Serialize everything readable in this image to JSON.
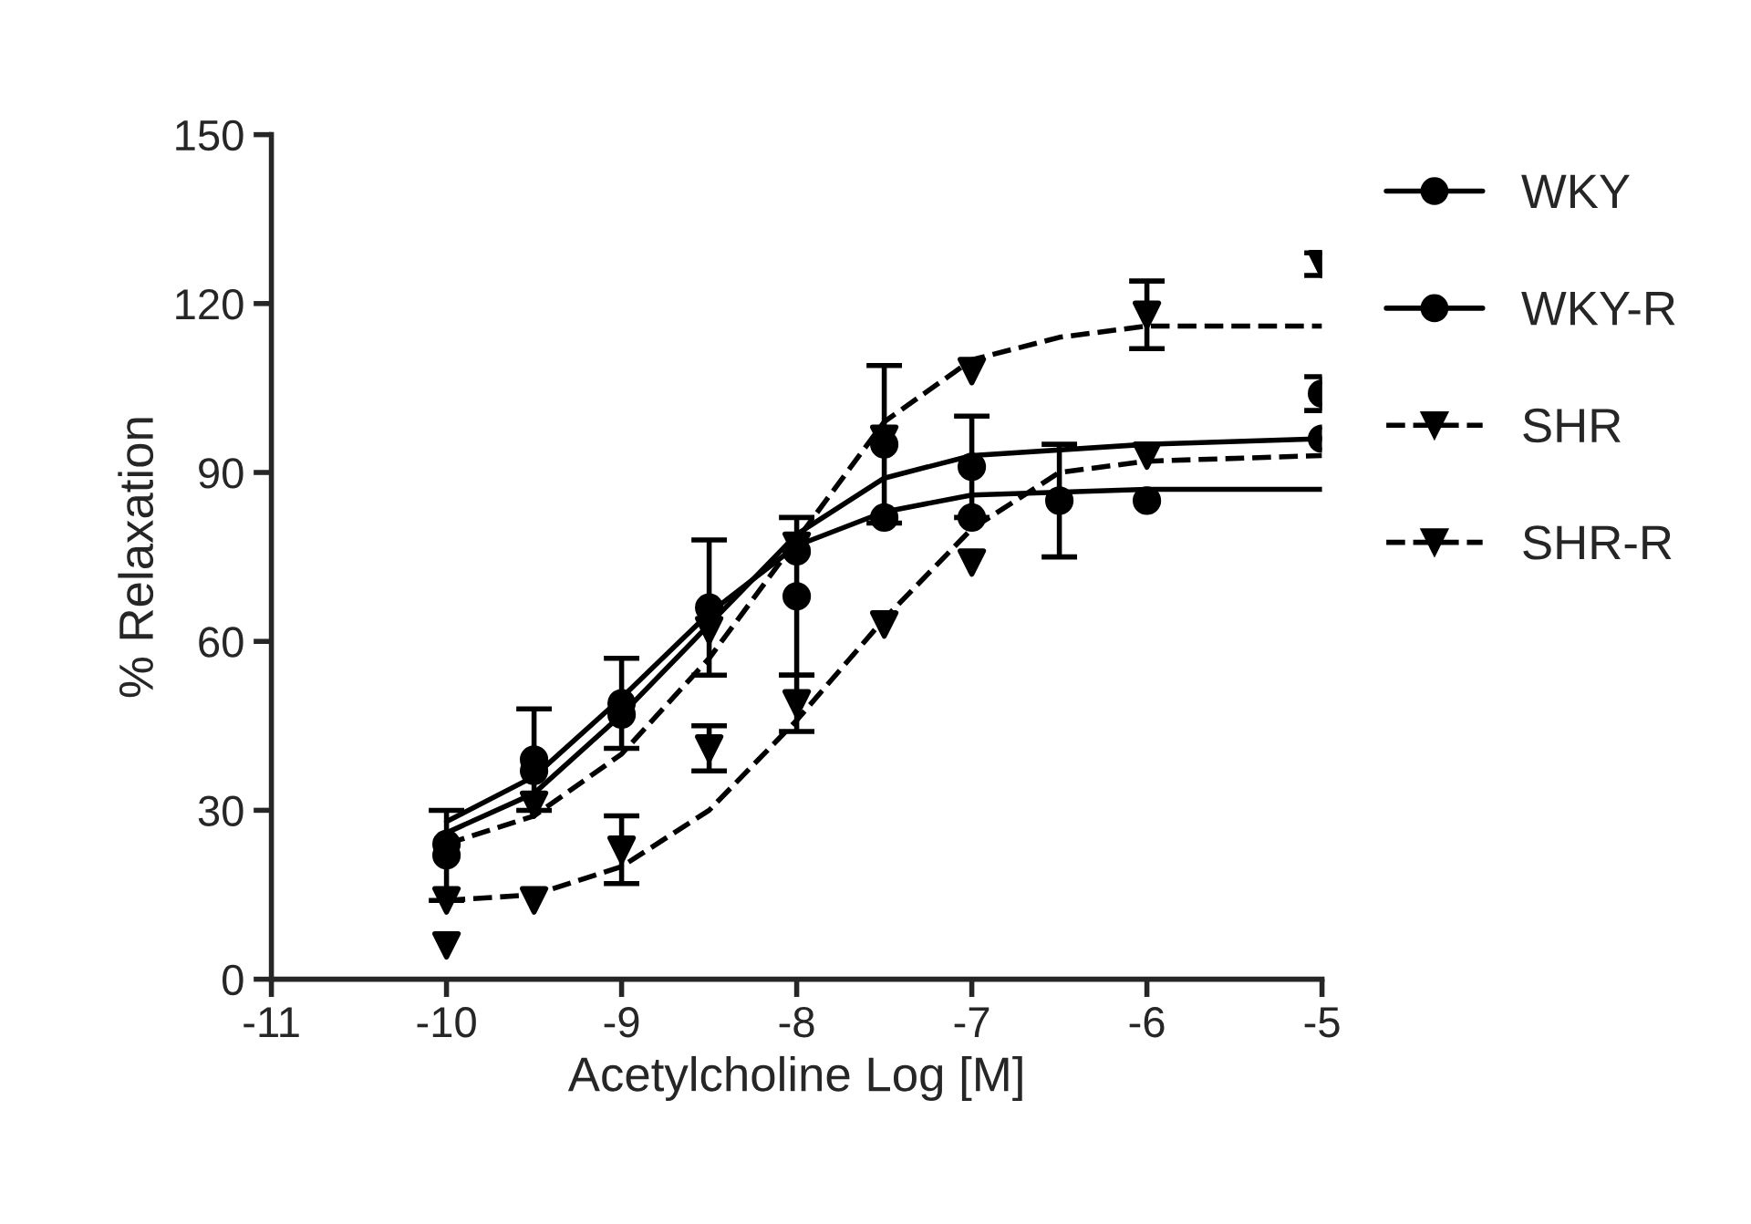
{
  "chart_data": {
    "type": "scatter",
    "xlabel": "Acetylcholine Log [M]",
    "ylabel": "% Relaxation",
    "xlim": [
      -11,
      -5
    ],
    "xticks": [
      -11,
      -10,
      -9,
      -8,
      -7,
      -6,
      -5
    ],
    "ylim": [
      0,
      150
    ],
    "yticks": [
      0,
      30,
      60,
      90,
      120,
      150
    ],
    "grid": false,
    "legend": "right",
    "series": [
      {
        "name": "WKY",
        "color": "#000000",
        "marker": "circle",
        "line_style": "solid",
        "x": [
          -10,
          -9.5,
          -9,
          -8.5,
          -8,
          -7.5,
          -7,
          -6,
          -5
        ],
        "values": [
          22,
          39,
          49,
          66,
          68,
          82,
          82,
          85,
          96
        ],
        "errors": [
          8,
          9,
          8,
          12,
          14,
          null,
          null,
          null,
          null
        ]
      },
      {
        "name": "WKY-R",
        "color": "#000000",
        "marker": "circle",
        "line_style": "solid",
        "x": [
          -10,
          -9.5,
          -9,
          -8.5,
          -8,
          -7.5,
          -7,
          -6.5,
          -5
        ],
        "values": [
          24,
          37,
          47,
          null,
          76,
          95,
          91,
          85,
          104
        ],
        "errors": [
          null,
          null,
          null,
          null,
          null,
          14,
          9,
          10,
          3
        ]
      },
      {
        "name": "SHR",
        "color": "#000000",
        "marker": "triangle",
        "line_style": "dashed",
        "x": [
          -10,
          -9.5,
          -9,
          -8.5,
          -8,
          -7.5,
          -7,
          -6
        ],
        "values": [
          6,
          14,
          23,
          41,
          49,
          63,
          74,
          93
        ],
        "errors": [
          null,
          null,
          6,
          4,
          5,
          null,
          null,
          null
        ]
      },
      {
        "name": "SHR-R",
        "color": "#000000",
        "marker": "triangle",
        "line_style": "dashed",
        "x": [
          -10,
          -9.5,
          -9,
          -8.5,
          -8,
          -7.5,
          -7,
          -6,
          -5
        ],
        "values": [
          14,
          31,
          null,
          62,
          77,
          96,
          108,
          118,
          127
        ],
        "errors": [
          null,
          null,
          null,
          null,
          null,
          null,
          null,
          6,
          2
        ]
      },
      {
        "type": "line",
        "color": "#000000",
        "line_style": "solid",
        "x": [
          -10,
          -9.5,
          -9,
          -8.5,
          -8,
          -7.5,
          -7,
          -6,
          -5
        ],
        "values": [
          28,
          36,
          50,
          65,
          77,
          83,
          86,
          87,
          87
        ]
      },
      {
        "type": "line",
        "color": "#000000",
        "line_style": "solid",
        "x": [
          -10,
          -9.5,
          -9,
          -8.5,
          -8,
          -7.5,
          -7,
          -6,
          -5
        ],
        "values": [
          26,
          33,
          47,
          63,
          79,
          89,
          93,
          95,
          96
        ]
      },
      {
        "type": "line",
        "color": "#000000",
        "line_style": "dashed",
        "x": [
          -10,
          -9.5,
          -9,
          -8.5,
          -8,
          -7.5,
          -7,
          -6.5,
          -6,
          -5
        ],
        "values": [
          14,
          15,
          20,
          30,
          46,
          64,
          80,
          90,
          92,
          93
        ]
      },
      {
        "type": "line",
        "color": "#000000",
        "line_style": "dashed",
        "x": [
          -10,
          -9.5,
          -9,
          -8.5,
          -8,
          -7.5,
          -7,
          -6.5,
          -6,
          -5
        ],
        "values": [
          24,
          29,
          40,
          57,
          78,
          99,
          110,
          114,
          116,
          116
        ]
      }
    ]
  }
}
